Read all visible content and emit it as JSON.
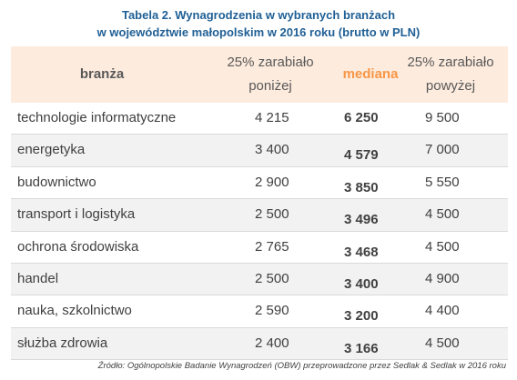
{
  "title_line1": "Tabela 2. Wynagrodzenia w wybranych branżach",
  "title_line2": "w województwie małopolskim w 2016 roku (brutto w PLN)",
  "columns": {
    "branza": "branża",
    "p25": "25% zarabiało poniżej",
    "mediana": "mediana",
    "p75": "25% zarabiało powyżej"
  },
  "rows": [
    {
      "branza": "technologie informatyczne",
      "p25": "4 215",
      "mediana": "6 250",
      "p75": "9 500"
    },
    {
      "branza": "energetyka",
      "p25": "3 400",
      "mediana": "4 579",
      "p75": "7 000"
    },
    {
      "branza": "budownictwo",
      "p25": "2 900",
      "mediana": "3 850",
      "p75": "5 550"
    },
    {
      "branza": "transport i logistyka",
      "p25": "2 500",
      "mediana": "3 496",
      "p75": "4 500"
    },
    {
      "branza": "ochrona środowiska",
      "p25": "2 765",
      "mediana": "3 468",
      "p75": "4 500"
    },
    {
      "branza": "handel",
      "p25": "2 500",
      "mediana": "3 400",
      "p75": "4 900"
    },
    {
      "branza": "nauka, szkolnictwo",
      "p25": "2 590",
      "mediana": "3 200",
      "p75": "4 400"
    },
    {
      "branza": "służba zdrowia",
      "p25": "2 400",
      "mediana": "3 166",
      "p75": "4 500"
    }
  ],
  "source": "Źródło: Ogólnopolskie Badanie Wynagrodzeń (OBW) przeprowadzone przez Sedlak & Sedlak w 2016 roku",
  "colors": {
    "title": "#1f5f95",
    "header_bg": "#fdebdd",
    "median_header": "#f79646",
    "row_shade": "#f2f2f2"
  }
}
